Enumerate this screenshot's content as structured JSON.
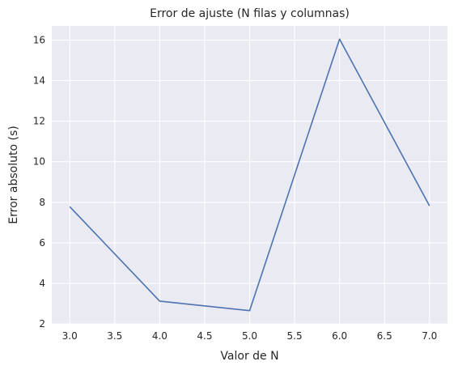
{
  "chart_data": {
    "type": "line",
    "title": "Error de ajuste (N filas y columnas)",
    "xlabel": "Valor de N",
    "ylabel": "Error absoluto (s)",
    "xlim": [
      2.8,
      7.2
    ],
    "ylim": [
      2.0,
      16.7
    ],
    "xticks": [
      "3.0",
      "3.5",
      "4.0",
      "4.5",
      "5.0",
      "5.5",
      "6.0",
      "6.5",
      "7.0"
    ],
    "yticks": [
      "2",
      "4",
      "6",
      "8",
      "10",
      "12",
      "14",
      "16"
    ],
    "grid": true,
    "x": [
      3,
      4,
      5,
      6,
      7
    ],
    "series": [
      {
        "values": [
          7.78,
          3.12,
          2.65,
          16.05,
          7.82
        ]
      }
    ],
    "colors": {
      "line": "#4c72b0",
      "background": "#eaeaf2",
      "grid": "#ffffff"
    }
  }
}
